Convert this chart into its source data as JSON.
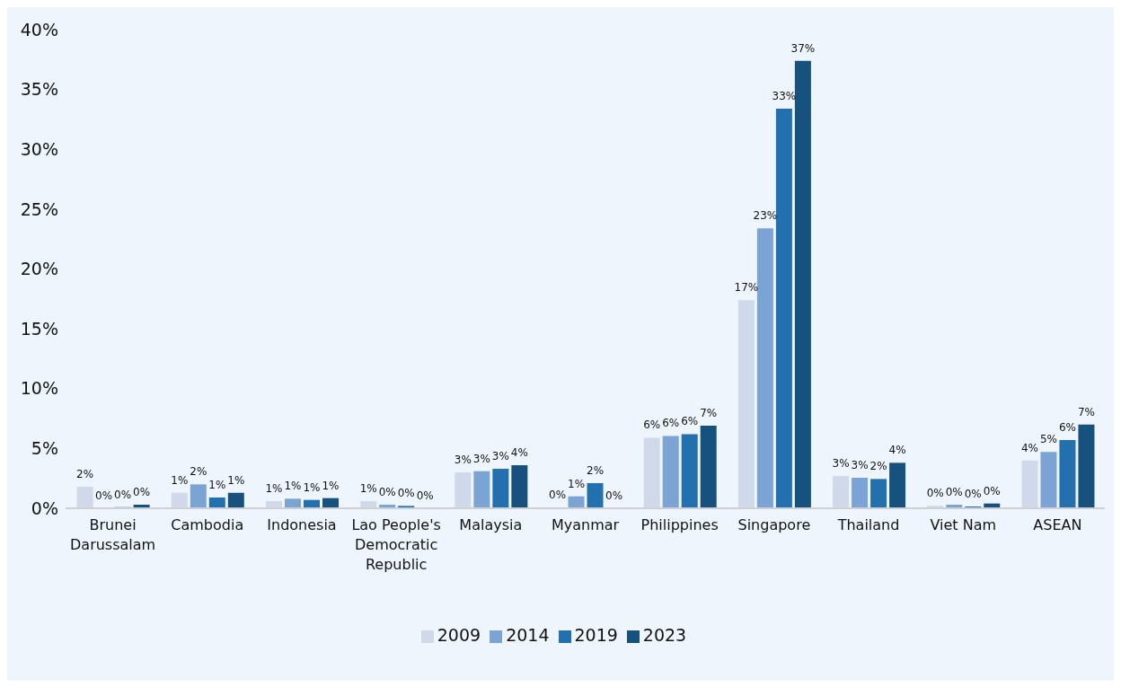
{
  "chart_data": {
    "type": "bar",
    "categories": [
      "Brunei Darussalam",
      "Cambodia",
      "Indonesia",
      "Lao People's Democratic Republic",
      "Malaysia",
      "Myanmar",
      "Philippines",
      "Singapore",
      "Thailand",
      "Viet Nam",
      "ASEAN"
    ],
    "series": [
      {
        "name": "2009",
        "color": "#cfd9ea",
        "values": [
          1.8,
          1.3,
          0.6,
          0.6,
          3.0,
          0.05,
          5.9,
          17.4,
          2.7,
          0.2,
          4.0
        ],
        "value_labels": [
          "2%",
          "1%",
          "1%",
          "1%",
          "3%",
          "0%",
          "6%",
          "17%",
          "3%",
          "0%",
          "4%"
        ]
      },
      {
        "name": "2014",
        "color": "#7ba3d3",
        "values": [
          0,
          2.0,
          0.8,
          0.3,
          3.1,
          1.0,
          6.05,
          23.4,
          2.55,
          0.3,
          4.7
        ],
        "value_labels": [
          "0%",
          "2%",
          "1%",
          "0%",
          "3%",
          "1%",
          "6%",
          "23%",
          "3%",
          "0%",
          "5%"
        ]
      },
      {
        "name": "2019",
        "color": "#2270ae",
        "values": [
          0.1,
          0.9,
          0.7,
          0.2,
          3.3,
          2.1,
          6.2,
          33.4,
          2.45,
          0.15,
          5.7
        ],
        "value_labels": [
          "0%",
          "1%",
          "1%",
          "0%",
          "3%",
          "2%",
          "6%",
          "33%",
          "2%",
          "0%",
          "6%"
        ]
      },
      {
        "name": "2023",
        "color": "#17527f",
        "values": [
          0.3,
          1.3,
          0.85,
          0,
          3.6,
          0,
          6.9,
          37.4,
          3.8,
          0.4,
          7.0
        ],
        "value_labels": [
          "0%",
          "1%",
          "1%",
          "0%",
          "4%",
          "0%",
          "7%",
          "37%",
          "4%",
          "0%",
          "7%"
        ]
      }
    ],
    "ylim": [
      0,
      40
    ],
    "yticks": [
      {
        "value": 0,
        "label": "0%"
      },
      {
        "value": 5,
        "label": "5%"
      },
      {
        "value": 10,
        "label": "10%"
      },
      {
        "value": 15,
        "label": "15%"
      },
      {
        "value": 20,
        "label": "20%"
      },
      {
        "value": 25,
        "label": "25%"
      },
      {
        "value": 30,
        "label": "30%"
      },
      {
        "value": 35,
        "label": "35%"
      },
      {
        "value": 40,
        "label": "40%"
      }
    ],
    "grid": false,
    "legend": "bottom"
  }
}
